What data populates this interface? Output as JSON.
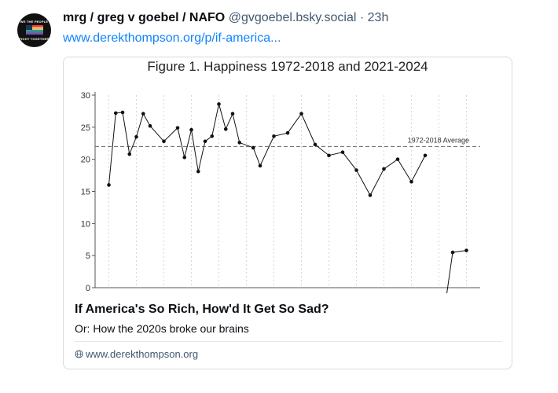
{
  "post": {
    "author": "mrg / greg v goebel / NAFO",
    "handle": "@gvgoebel.bsky.social",
    "separator": "·",
    "time": "23h",
    "link_text": "www.derekthompson.org/p/if-america...",
    "avatar_text_top": "WE THE PEOPLE",
    "avatar_text_bottom": "FIGHT TOGETHER"
  },
  "card": {
    "title": "If America's So Rich, How'd It Get So Sad?",
    "description": "Or: How the 2020s broke our brains",
    "domain": "www.derekthompson.org"
  },
  "chart_data": {
    "type": "line",
    "title": "Figure 1.  Happiness 1972-2018 and 2021-2024",
    "yticks": [
      0,
      5,
      10,
      15,
      20,
      25,
      30
    ],
    "ylim": [
      0,
      30
    ],
    "grid": true,
    "reference_line": {
      "label": "1972-2018 Average",
      "value": 22
    },
    "series": [
      {
        "values": [
          [
            1972,
            16
          ],
          [
            1973,
            27.2
          ],
          [
            1974,
            27.3
          ],
          [
            1975,
            20.8
          ],
          [
            1976,
            23.5
          ],
          [
            1977,
            27.1
          ],
          [
            1978,
            25.2
          ],
          [
            1980,
            22.8
          ],
          [
            1982,
            24.9
          ],
          [
            1983,
            20.3
          ],
          [
            1984,
            24.6
          ],
          [
            1985,
            18.1
          ],
          [
            1986,
            22.8
          ],
          [
            1987,
            23.6
          ],
          [
            1988,
            28.6
          ],
          [
            1989,
            24.7
          ],
          [
            1990,
            27.1
          ],
          [
            1991,
            22.6
          ],
          [
            1993,
            21.8
          ],
          [
            1994,
            19.0
          ],
          [
            1996,
            23.6
          ],
          [
            1998,
            24.1
          ],
          [
            2000,
            27.1
          ],
          [
            2002,
            22.3
          ],
          [
            2004,
            20.6
          ],
          [
            2006,
            21.1
          ],
          [
            2008,
            18.3
          ],
          [
            2010,
            14.4
          ],
          [
            2012,
            18.5
          ],
          [
            2014,
            20.0
          ],
          [
            2016,
            16.5
          ],
          [
            2018,
            20.6
          ]
        ]
      },
      {
        "values": [
          [
            2021,
            -2
          ],
          [
            2022,
            5.5
          ],
          [
            2024,
            5.8
          ]
        ]
      }
    ]
  },
  "colors": {
    "link": "#1083fe",
    "muted": "#42576c",
    "border": "#d4dbe2",
    "line": "#111111"
  },
  "icons": {
    "domain": "globe-icon"
  }
}
